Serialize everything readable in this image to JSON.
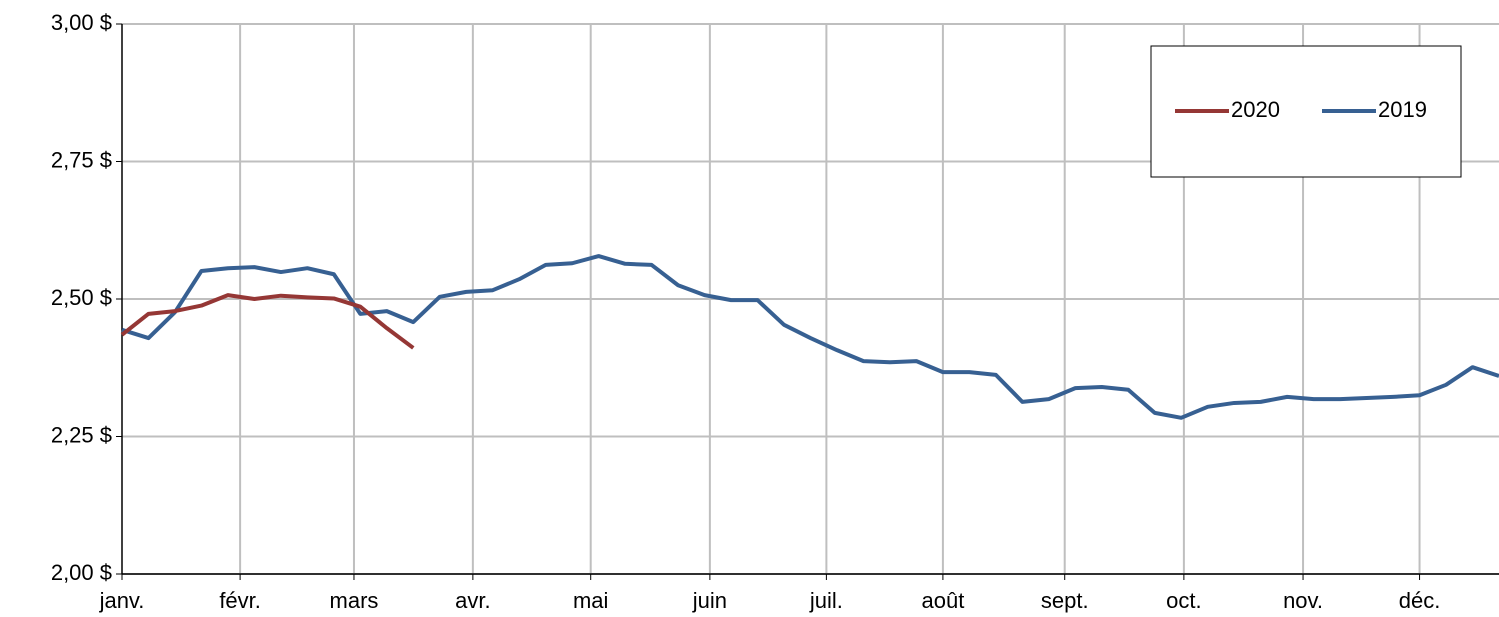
{
  "chart_data": {
    "type": "line",
    "xlim": [
      0,
      52
    ],
    "xticks": [
      {
        "value": 0,
        "label": "janv."
      },
      {
        "value": 4.46,
        "label": "févr."
      },
      {
        "value": 8.76,
        "label": "mars"
      },
      {
        "value": 13.25,
        "label": "avr."
      },
      {
        "value": 17.7,
        "label": "mai"
      },
      {
        "value": 22.2,
        "label": "juin"
      },
      {
        "value": 26.6,
        "label": "juil."
      },
      {
        "value": 31.0,
        "label": "août"
      },
      {
        "value": 35.6,
        "label": "sept."
      },
      {
        "value": 40.1,
        "label": "oct."
      },
      {
        "value": 44.6,
        "label": "nov."
      },
      {
        "value": 49.0,
        "label": "déc."
      }
    ],
    "ylim": [
      2.0,
      3.0
    ],
    "yticks": [
      {
        "value": 2.0,
        "label": "2,00 $"
      },
      {
        "value": 2.25,
        "label": "2,25 $"
      },
      {
        "value": 2.5,
        "label": "2,50 $"
      },
      {
        "value": 2.75,
        "label": "2,75 $"
      },
      {
        "value": 3.0,
        "label": "3,00 $"
      }
    ],
    "grid": true,
    "legend": "upper right",
    "series": [
      {
        "name": "2020",
        "color": "#953735",
        "values": [
          2.435,
          2.473,
          2.478,
          2.488,
          2.507,
          2.5,
          2.506,
          2.503,
          2.501,
          2.486,
          2.447,
          2.411,
          null,
          null,
          null,
          null,
          null,
          null,
          null,
          null,
          null,
          null,
          null,
          null,
          null,
          null,
          null,
          null,
          null,
          null,
          null,
          null,
          null,
          null,
          null,
          null,
          null,
          null,
          null,
          null,
          null,
          null,
          null,
          null,
          null,
          null,
          null,
          null,
          null,
          null,
          null,
          null,
          null
        ]
      },
      {
        "name": "2019",
        "color": "#376092",
        "values": [
          2.444,
          2.429,
          2.476,
          2.551,
          2.556,
          2.558,
          2.549,
          2.556,
          2.545,
          2.473,
          2.478,
          2.458,
          2.504,
          2.513,
          2.516,
          2.536,
          2.562,
          2.565,
          2.578,
          2.564,
          2.562,
          2.525,
          2.507,
          2.498,
          2.498,
          2.453,
          2.429,
          2.407,
          2.387,
          2.385,
          2.387,
          2.367,
          2.367,
          2.362,
          2.313,
          2.318,
          2.338,
          2.34,
          2.335,
          2.293,
          2.284,
          2.304,
          2.311,
          2.313,
          2.322,
          2.318,
          2.318,
          2.32,
          2.322,
          2.325,
          2.344,
          2.376,
          2.36
        ]
      }
    ]
  }
}
